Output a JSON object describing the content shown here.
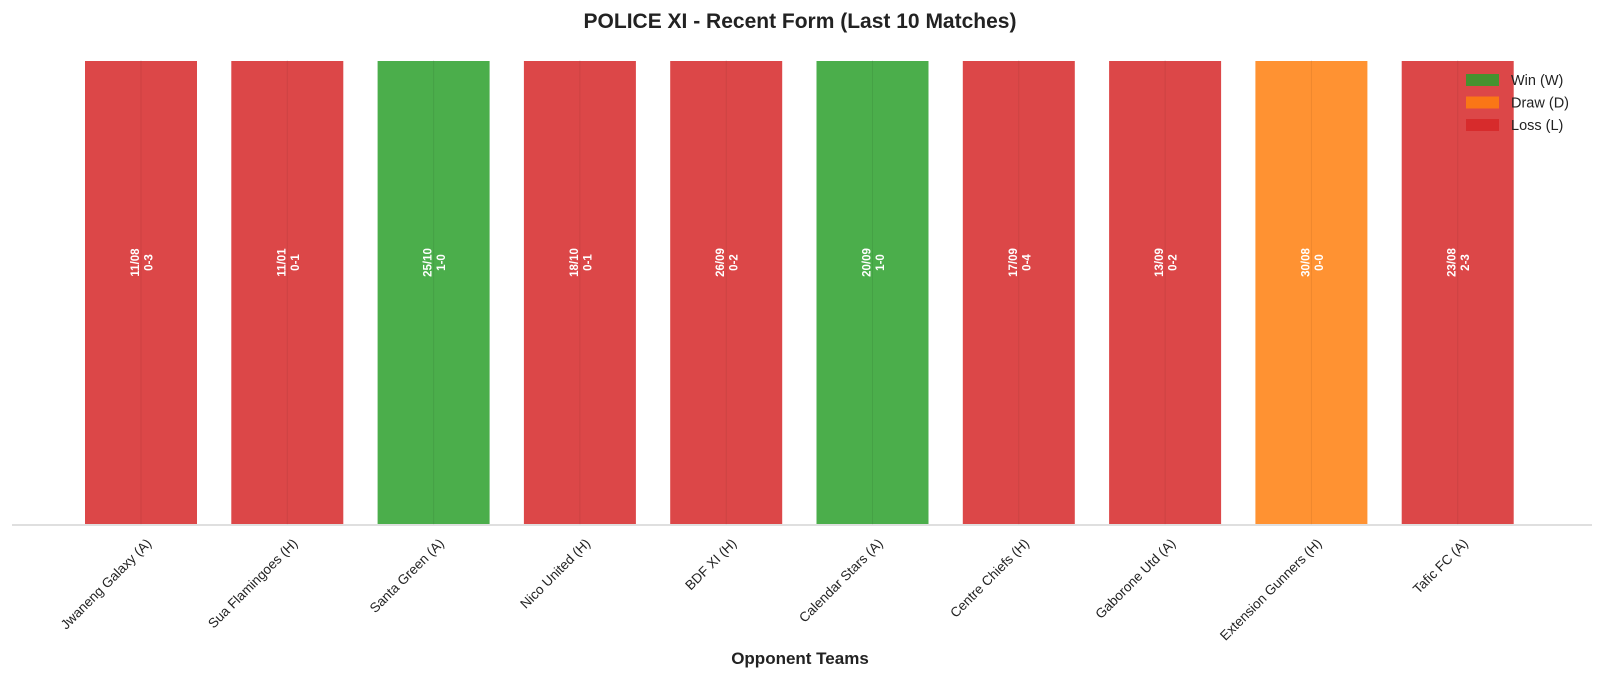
{
  "chart_data": {
    "type": "bar",
    "title": "POLICE XI - Recent Form (Last 10 Matches)",
    "xlabel": "Opponent Teams",
    "ylabel": "",
    "categories": [
      "Jwaneng Galaxy (A)",
      "Sua Flamingoes (H)",
      "Santa Green (A)",
      "Nico United (H)",
      "BDF XI (H)",
      "Calendar Stars (A)",
      "Centre Chiefs (H)",
      "Gaborone Utd (A)",
      "Extension Gunners (H)",
      "Tafic FC (A)"
    ],
    "values": [
      1,
      1,
      1,
      1,
      1,
      1,
      1,
      1,
      1,
      1
    ],
    "results": [
      "L",
      "L",
      "W",
      "L",
      "L",
      "W",
      "L",
      "L",
      "D",
      "L"
    ],
    "dates": [
      "11/08",
      "11/01",
      "25/10",
      "18/10",
      "26/09",
      "20/09",
      "17/09",
      "13/09",
      "30/08",
      "23/08"
    ],
    "scores": [
      "0-3",
      "0-1",
      "1-0",
      "0-1",
      "0-2",
      "1-0",
      "0-4",
      "0-2",
      "0-0",
      "2-3"
    ],
    "ylim": [
      0,
      1
    ],
    "grid": false,
    "legend_position": "top-right",
    "legend": [
      {
        "key": "W",
        "label": "Win (W)",
        "color": "#2ca02c"
      },
      {
        "key": "D",
        "label": "Draw (D)",
        "color": "#ff7f0e"
      },
      {
        "key": "L",
        "label": "Loss (L)",
        "color": "#d62728"
      }
    ]
  }
}
